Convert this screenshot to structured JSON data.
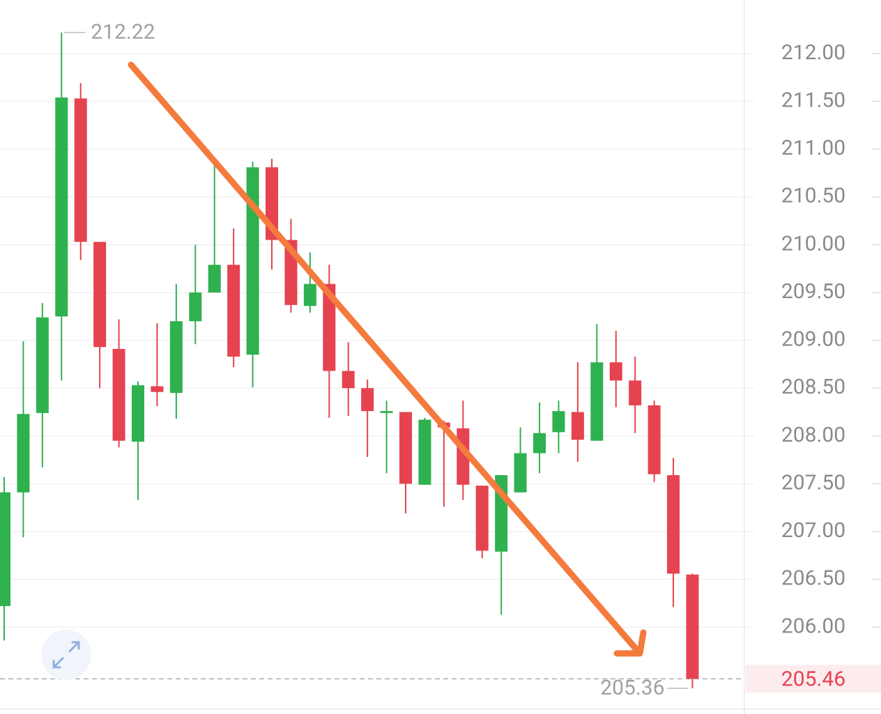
{
  "chart_data": {
    "type": "candlestick",
    "categories": [
      null,
      null,
      null,
      null,
      null,
      null,
      null,
      null,
      null,
      null,
      null,
      null,
      null,
      null,
      null,
      null,
      null,
      null,
      null,
      null,
      null,
      null,
      null,
      null,
      null,
      null,
      null,
      null,
      null,
      null,
      null,
      null,
      null,
      null,
      null,
      null,
      null
    ],
    "open": [
      206.22,
      207.41,
      208.24,
      209.25,
      211.53,
      210.03,
      208.91,
      207.94,
      208.52,
      208.45,
      209.2,
      209.5,
      209.79,
      208.85,
      210.81,
      210.05,
      209.36,
      209.59,
      208.68,
      208.5,
      208.24,
      208.25,
      207.49,
      208.14,
      208.08,
      207.48,
      206.79,
      207.41,
      207.82,
      208.04,
      208.25,
      207.95,
      208.77,
      208.58,
      208.32,
      207.59,
      206.55
    ],
    "high": [
      207.57,
      208.99,
      209.39,
      212.22,
      211.69,
      210.03,
      209.22,
      208.57,
      209.18,
      209.59,
      210.0,
      210.83,
      210.17,
      210.87,
      210.9,
      210.27,
      209.92,
      209.79,
      208.98,
      208.59,
      208.37,
      208.25,
      208.19,
      208.16,
      208.37,
      207.48,
      207.59,
      208.09,
      208.35,
      208.37,
      208.77,
      209.17,
      209.1,
      208.83,
      208.37,
      207.77,
      206.56
    ],
    "low": [
      205.86,
      206.94,
      207.67,
      208.58,
      209.84,
      208.5,
      207.88,
      207.33,
      208.31,
      208.18,
      208.96,
      209.5,
      208.72,
      208.51,
      209.74,
      209.29,
      209.29,
      208.19,
      208.21,
      207.78,
      207.61,
      207.19,
      207.49,
      207.26,
      207.33,
      206.72,
      206.13,
      207.41,
      207.61,
      207.82,
      207.73,
      207.95,
      208.3,
      208.03,
      207.52,
      206.21,
      205.36
    ],
    "close": [
      207.41,
      208.23,
      209.24,
      211.54,
      210.03,
      208.93,
      207.95,
      208.53,
      208.46,
      209.2,
      209.5,
      209.79,
      208.83,
      210.81,
      210.05,
      209.37,
      209.59,
      208.68,
      208.5,
      208.26,
      208.26,
      207.5,
      208.17,
      208.09,
      207.49,
      206.8,
      207.59,
      207.82,
      208.03,
      208.26,
      207.96,
      208.77,
      208.58,
      208.32,
      207.6,
      206.56,
      205.46
    ],
    "up_color": "#2fb14f",
    "down_color": "#e5434f",
    "ylim": [
      205.15,
      212.56
    ],
    "yticks": [
      {
        "value": 206,
        "label": "206.00"
      },
      {
        "value": 206.5,
        "label": "206.50"
      },
      {
        "value": 207,
        "label": "207.00"
      },
      {
        "value": 207.5,
        "label": "207.50"
      },
      {
        "value": 208,
        "label": "208.00"
      },
      {
        "value": 208.5,
        "label": "208.50"
      },
      {
        "value": 209,
        "label": "209.00"
      },
      {
        "value": 209.5,
        "label": "209.50"
      },
      {
        "value": 210,
        "label": "210.00"
      },
      {
        "value": 210.5,
        "label": "210.50"
      },
      {
        "value": 211,
        "label": "211.00"
      },
      {
        "value": 211.5,
        "label": "211.50"
      },
      {
        "value": 212,
        "label": "212.00"
      }
    ],
    "grid": true,
    "high_label": 212.22,
    "low_label": 205.36,
    "last_price": 205.46
  }
}
